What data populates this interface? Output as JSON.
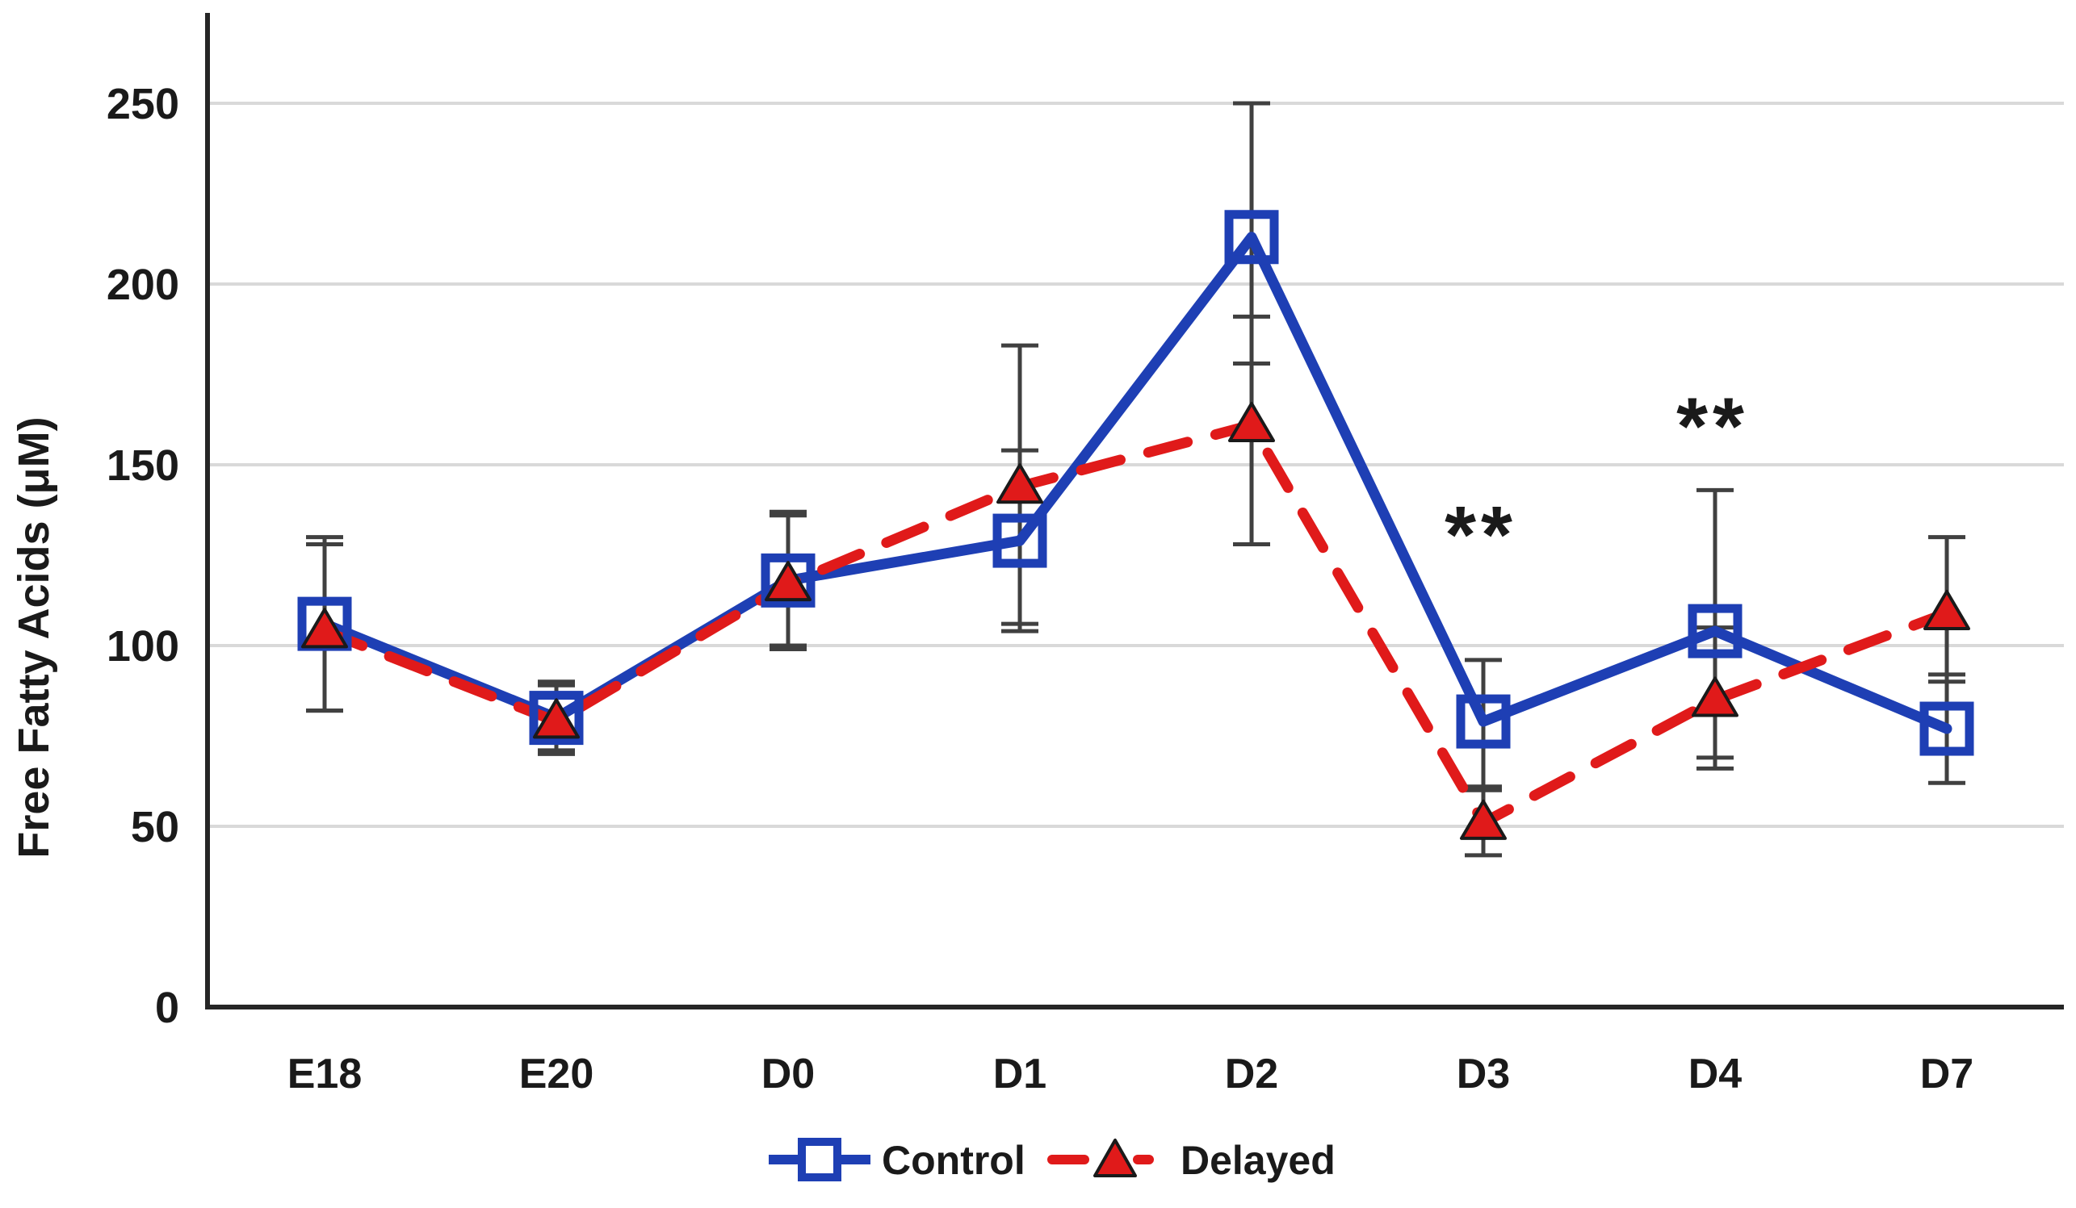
{
  "figure": {
    "background": "#ffffff"
  },
  "chart_data": {
    "type": "line",
    "categories": [
      "E18",
      "E20",
      "D0",
      "D1",
      "D2",
      "D3",
      "D4",
      "D7"
    ],
    "y_axis": {
      "title": "Free Fatty Acids (μM)",
      "ticks": [
        0,
        50,
        100,
        150,
        200,
        250
      ],
      "min": 0,
      "max": 275,
      "grid": true
    },
    "x_axis": {
      "title": ""
    },
    "series": [
      {
        "name": "Control",
        "color": "#1E3FB4",
        "line_style": "solid",
        "marker": "open-square",
        "values": [
          106,
          80,
          118,
          129,
          213,
          79,
          104,
          77
        ],
        "error_minus": [
          24,
          10,
          19,
          25,
          35,
          19,
          38,
          15
        ],
        "error_plus": [
          24,
          10,
          19,
          25,
          37,
          17,
          39,
          15
        ]
      },
      {
        "name": "Delayed",
        "color": "#E01A1A",
        "line_style": "dashed",
        "marker": "filled-triangle",
        "values": [
          104,
          79,
          117,
          144,
          161,
          51,
          85,
          109
        ],
        "error_minus": [
          22,
          8,
          17,
          38,
          33,
          9,
          16,
          19
        ],
        "error_plus": [
          24,
          10,
          19,
          39,
          30,
          10,
          20,
          21
        ]
      }
    ],
    "annotations": [
      {
        "text": "**",
        "category": "D3",
        "y_value": 131
      },
      {
        "text": "**",
        "category": "D4",
        "y_value": 161
      }
    ],
    "legend": {
      "position": "bottom-center",
      "items": [
        "Control",
        "Delayed"
      ]
    },
    "colors": {
      "gridline": "#D9D9D9",
      "axis": "#262626",
      "error_bar": "#404040",
      "text": "#1A1A1A",
      "marker_outline": "#1A1A1A"
    }
  }
}
